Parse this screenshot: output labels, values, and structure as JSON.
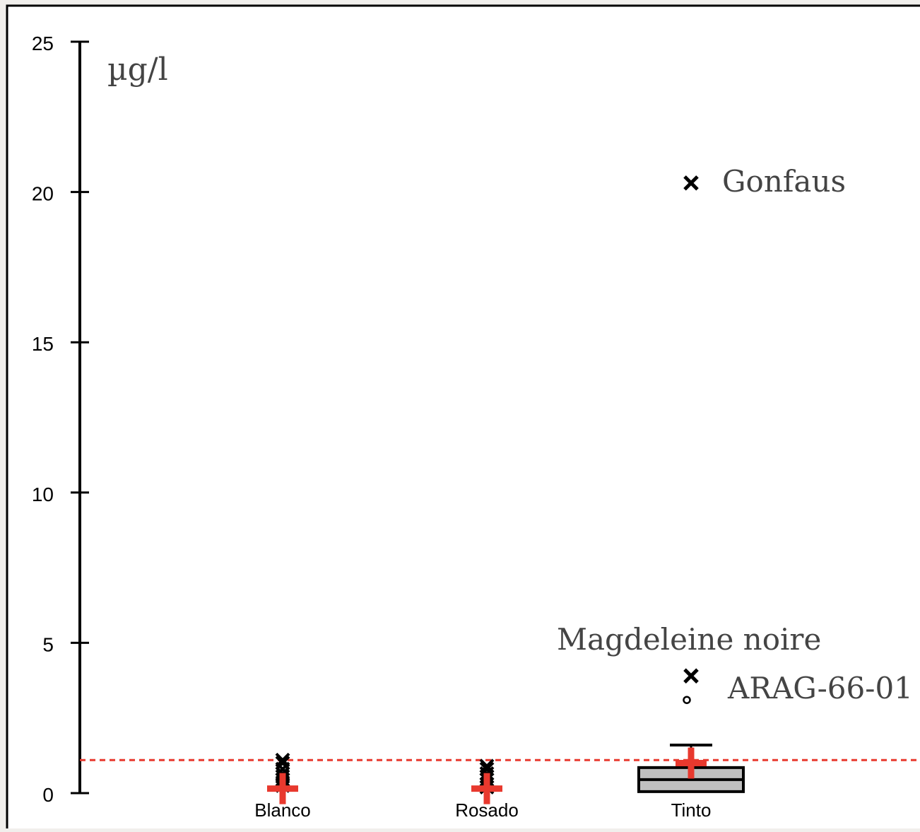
{
  "chart_data": {
    "type": "box",
    "unit_label": "µg/l",
    "xlabel": "",
    "ylabel": "",
    "ylim": [
      0,
      25
    ],
    "y_ticks": [
      0,
      5,
      10,
      15,
      20,
      25
    ],
    "categories": [
      "Blanco",
      "Rosado",
      "Tinto"
    ],
    "reference_line": {
      "value": 1.1,
      "style": "dashed",
      "color": "#e8392e"
    },
    "groups": [
      {
        "category": "Blanco",
        "box": null,
        "mean": 0.15,
        "points": [
          0.25,
          0.35,
          0.45,
          0.55,
          0.65,
          0.8,
          1.0,
          1.1
        ]
      },
      {
        "category": "Rosado",
        "box": null,
        "mean": 0.15,
        "points": [
          0.2,
          0.3,
          0.45,
          0.55,
          0.65,
          0.8,
          0.9
        ]
      },
      {
        "category": "Tinto",
        "box": {
          "q1": 0.05,
          "median": 0.45,
          "q3": 0.85,
          "whisker_low": 0.0,
          "whisker_high": 1.6
        },
        "mean": 1.0,
        "outliers": [
          {
            "value": 20.3,
            "marker": "x",
            "label": "Gonfaus"
          },
          {
            "value": 3.9,
            "marker": "x",
            "label": "Magdeleine noire"
          },
          {
            "value": 3.1,
            "marker": "circle",
            "label": "ARAG-66-01"
          }
        ]
      }
    ],
    "colors": {
      "axis": "#000000",
      "box_fill": "#c0c0c0",
      "mean_marker": "#e8392e",
      "points": "#000000",
      "annotation_text": "#444444"
    }
  }
}
